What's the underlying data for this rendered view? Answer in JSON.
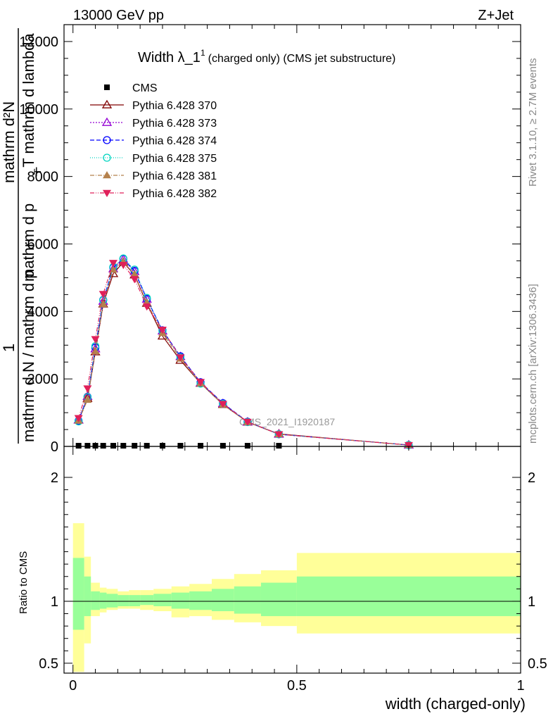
{
  "header": {
    "energy_label": "13000 GeV pp",
    "process_label": "Z+Jet"
  },
  "side_labels": {
    "rivet": "Rivet 3.1.10, ≥ 2.7M events",
    "mcplots": "mcplots.cern.ch [arXiv:1306.3436]"
  },
  "watermark": "CMS_2021_I1920187",
  "chart_data": {
    "type": "line",
    "title": "Width λ_1",
    "title_sup": "1",
    "title_suffix": "(charged only) (CMS jet substructure)",
    "ylabel_parts": {
      "one": "1",
      "num": "mathrm d²N",
      "den": "mathrm d N / mathrm d p",
      "den2": "mathrm d p",
      "den3": "_T mathrm d lambda",
      "t_sub": "T"
    },
    "xlabel": "width (charged-only)",
    "xlim": [
      -0.02,
      1.0
    ],
    "ylim": [
      0,
      12500
    ],
    "x_ticks": [
      0,
      0.5,
      1
    ],
    "x_tick_labels": [
      "0",
      "0.5",
      "1"
    ],
    "y_ticks": [
      0,
      2000,
      4000,
      6000,
      8000,
      10000,
      12000
    ],
    "y_tick_labels": [
      "0",
      "2000",
      "4000",
      "6000",
      "8000",
      "10000",
      "12000"
    ],
    "legend_position": "top-left",
    "x": [
      0.0125,
      0.0325,
      0.05,
      0.0675,
      0.09,
      0.1125,
      0.1375,
      0.165,
      0.2,
      0.24,
      0.285,
      0.335,
      0.39,
      0.46,
      0.75
    ],
    "series": [
      {
        "name": "CMS",
        "marker": "square",
        "color": "#000000",
        "dash": "",
        "values": [
          20,
          20,
          20,
          20,
          20,
          20,
          20,
          20,
          20,
          20,
          20,
          20,
          20,
          20,
          20
        ]
      },
      {
        "name": "Pythia 6.428 370",
        "marker": "triangle-open",
        "color": "#800000",
        "dash": "",
        "values": [
          780,
          1420,
          2800,
          4220,
          5120,
          5460,
          5080,
          4240,
          3270,
          2550,
          1870,
          1240,
          720,
          370,
          40
        ]
      },
      {
        "name": "Pythia 6.428 373",
        "marker": "triangle-open",
        "color": "#9400d3",
        "dash": "2,2",
        "values": [
          780,
          1480,
          2890,
          4300,
          5260,
          5540,
          5180,
          4360,
          3420,
          2660,
          1880,
          1270,
          720,
          360,
          40
        ]
      },
      {
        "name": "Pythia 6.428 374",
        "marker": "circle-open",
        "color": "#0000ff",
        "dash": "6,3",
        "values": [
          760,
          1470,
          2930,
          4340,
          5300,
          5560,
          5200,
          4370,
          3440,
          2670,
          1900,
          1280,
          730,
          360,
          40
        ]
      },
      {
        "name": "Pythia 6.428 375",
        "marker": "circle-open",
        "color": "#00d4c0",
        "dash": "1,2",
        "values": [
          740,
          1460,
          2970,
          4330,
          5320,
          5570,
          5240,
          4400,
          3420,
          2640,
          1860,
          1260,
          720,
          360,
          40
        ]
      },
      {
        "name": "Pythia 6.428 381",
        "marker": "triangle",
        "color": "#b5814c",
        "dash": "6,2,1,2",
        "values": [
          760,
          1380,
          2820,
          4220,
          5240,
          5470,
          5100,
          4260,
          3360,
          2600,
          1870,
          1240,
          720,
          360,
          40
        ]
      },
      {
        "name": "Pythia 6.428 382",
        "marker": "triangle-down",
        "color": "#e0205a",
        "dash": "6,2,1,2,1,2",
        "values": [
          840,
          1720,
          3180,
          4520,
          5440,
          5380,
          4960,
          4150,
          3460,
          2640,
          1910,
          1260,
          730,
          360,
          40
        ]
      }
    ],
    "ratio": {
      "ylabel": "Ratio to CMS",
      "ylim": [
        0.42,
        2.25
      ],
      "y_ticks": [
        0.5,
        1,
        2
      ],
      "y_tick_labels": [
        "0.5",
        "1",
        "2"
      ],
      "bin_edges": [
        0.0,
        0.025,
        0.04,
        0.06,
        0.075,
        0.1,
        0.125,
        0.15,
        0.18,
        0.22,
        0.26,
        0.31,
        0.36,
        0.42,
        0.5,
        1.0
      ],
      "stat_band": [
        [
          0.77,
          1.35
        ],
        [
          0.88,
          1.2
        ],
        [
          0.93,
          1.08
        ],
        [
          0.94,
          1.07
        ],
        [
          0.95,
          1.06
        ],
        [
          0.96,
          1.05
        ],
        [
          0.96,
          1.05
        ],
        [
          0.97,
          1.05
        ],
        [
          0.96,
          1.06
        ],
        [
          0.94,
          1.07
        ],
        [
          0.93,
          1.08
        ],
        [
          0.92,
          1.1
        ],
        [
          0.9,
          1.12
        ],
        [
          0.88,
          1.15
        ],
        [
          0.88,
          1.2
        ]
      ],
      "total_band": [
        [
          0.43,
          1.63
        ],
        [
          0.66,
          1.36
        ],
        [
          0.88,
          1.15
        ],
        [
          0.91,
          1.11
        ],
        [
          0.93,
          1.1
        ],
        [
          0.94,
          1.08
        ],
        [
          0.94,
          1.09
        ],
        [
          0.93,
          1.09
        ],
        [
          0.92,
          1.1
        ],
        [
          0.87,
          1.12
        ],
        [
          0.88,
          1.14
        ],
        [
          0.85,
          1.18
        ],
        [
          0.83,
          1.22
        ],
        [
          0.8,
          1.25
        ],
        [
          0.74,
          1.39
        ]
      ],
      "stat_color": "#99ff99",
      "total_color": "#ffff99"
    }
  }
}
